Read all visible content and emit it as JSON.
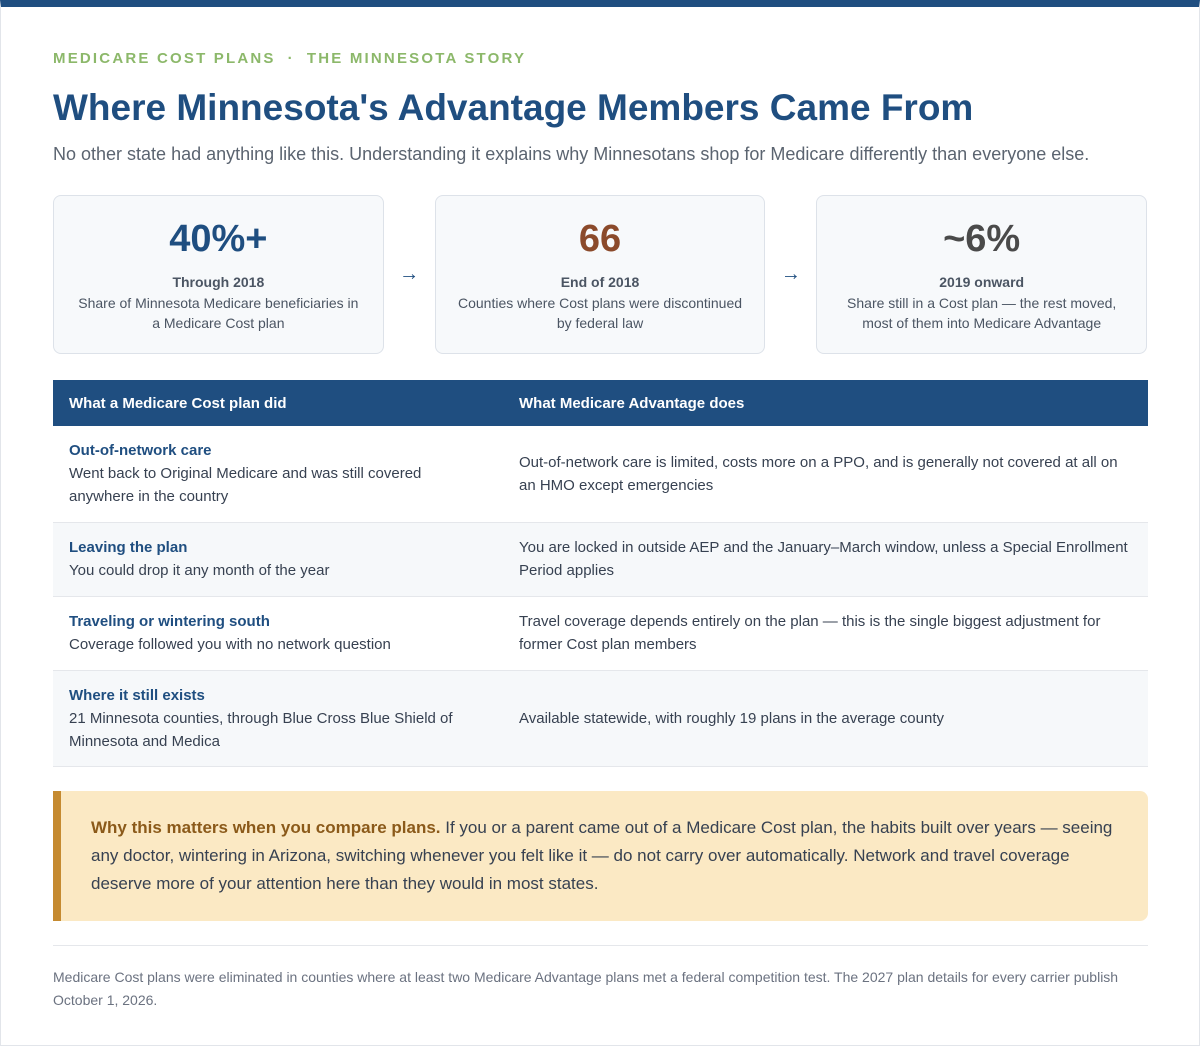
{
  "header": {
    "eyebrow_left": "MEDICARE COST PLANS",
    "eyebrow_sep": "·",
    "eyebrow_right": "THE MINNESOTA STORY",
    "title": "Where Minnesota's Advantage Members Came From",
    "subtitle": "No other state had anything like this. Understanding it explains why Minnesotans shop for Medicare differently than everyone else."
  },
  "stats": [
    {
      "value": "40%+",
      "label": "Through 2018",
      "desc": "Share of Minnesota Medicare beneficiaries in a Medicare Cost plan",
      "color": "#1f4e80"
    },
    {
      "value": "66",
      "label": "End of 2018",
      "desc": "Counties where Cost plans were discontinued by federal law",
      "color": "#8b4a2b"
    },
    {
      "value": "~6%",
      "label": "2019 onward",
      "desc": "Share still in a Cost plan — the rest moved, most of them into Medicare Advantage",
      "color": "#4a4a4a"
    }
  ],
  "arrow_icon": "→",
  "table": {
    "headers": [
      "What a Medicare Cost plan did",
      "What Medicare Advantage does"
    ],
    "rows": [
      {
        "title": "Out-of-network care",
        "cost": "Went back to Original Medicare and was still covered anywhere in the country",
        "advantage": "Out-of-network care is limited, costs more on a PPO, and is generally not covered at all on an HMO except emergencies"
      },
      {
        "title": "Leaving the plan",
        "cost": "You could drop it any month of the year",
        "advantage": "You are locked in outside AEP and the January–March window, unless a Special Enrollment Period applies"
      },
      {
        "title": "Traveling or wintering south",
        "cost": "Coverage followed you with no network question",
        "advantage": "Travel coverage depends entirely on the plan — this is the single biggest adjustment for former Cost plan members"
      },
      {
        "title": "Where it still exists",
        "cost": "21 Minnesota counties, through Blue Cross Blue Shield of Minnesota and Medica",
        "advantage": "Available statewide, with roughly 19 plans in the average county"
      }
    ]
  },
  "callout": {
    "lead": "Why this matters when you compare plans.",
    "text": " If you or a parent came out of a Medicare Cost plan, the habits built over years — seeing any doctor, wintering in Arizona, switching whenever you felt like it — do not carry over automatically. Network and travel coverage deserve more of your attention here than they would in most states."
  },
  "footnote": "Medicare Cost plans were eliminated in counties where at least two Medicare Advantage plans met a federal competition test. The 2027 plan details for every carrier publish October 1, 2026.",
  "colors": {
    "accent": "#1f4e80",
    "eyebrow": "#8cb86a",
    "callout_bg": "#fbe9c4",
    "callout_border": "#c58a30"
  }
}
